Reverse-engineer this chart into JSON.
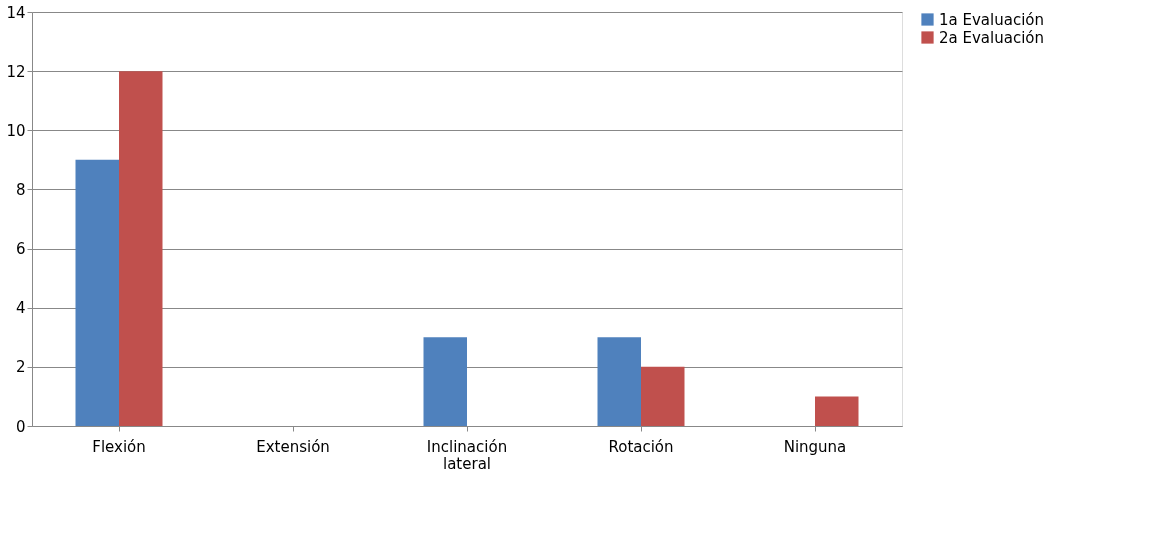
{
  "chart_data": {
    "type": "bar",
    "categories": [
      "Flexión",
      "Extensión",
      "Inclinación lateral",
      "Rotación",
      "Ninguna"
    ],
    "series": [
      {
        "name": "1a Evaluación",
        "color": "#4f81bd",
        "values": [
          9,
          0,
          3,
          3,
          0
        ]
      },
      {
        "name": "2a Evaluación",
        "color": "#c0504d",
        "values": [
          12,
          0,
          0,
          2,
          1
        ]
      }
    ],
    "ylim": [
      0,
      14
    ],
    "yticks": [
      0,
      2,
      4,
      6,
      8,
      10,
      12,
      14
    ],
    "grid": "y",
    "legend": "right"
  }
}
